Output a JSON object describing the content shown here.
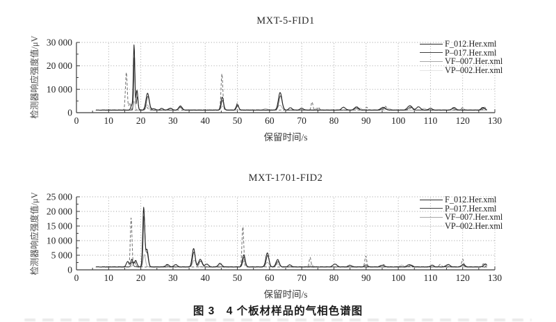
{
  "figure": {
    "caption": "图 3　4 个板材样品的气相色谱图"
  },
  "legend": {
    "items": [
      {
        "label": "F_012.Her.xml",
        "swatch_color": "#2b2b2b"
      },
      {
        "label": "P–017.Her.xml",
        "swatch_color": "#3f3f3f"
      },
      {
        "label": "VF–007.Her.xml",
        "swatch_color": "#a6a6a6"
      },
      {
        "label": "VP–002.Her.xml",
        "swatch_color": "#e4e4e4"
      }
    ],
    "position": "top-right-inside"
  },
  "chart_data": [
    {
      "type": "line",
      "title": "MXT-5-FID1",
      "xlabel": "保留时间/s",
      "ylabel": "检测器响应强度值/μV",
      "xlim": [
        0,
        130
      ],
      "ylim": [
        0,
        30000
      ],
      "x_major_ticks": [
        0,
        10,
        20,
        30,
        40,
        50,
        60,
        70,
        80,
        90,
        100,
        110,
        120,
        130
      ],
      "x_tick_labels": [
        "0",
        "10",
        "20",
        "30",
        "40",
        "50",
        "60",
        "70",
        "80",
        "90",
        "100",
        "110",
        "120",
        "130"
      ],
      "x_minor_step": 5,
      "y_major_ticks": [
        0,
        10000,
        20000,
        30000
      ],
      "y_tick_labels": [
        "0",
        "10 000",
        "20 000",
        "30 000"
      ],
      "y_minor_step": 5000,
      "grid": "dotted",
      "baseline": 1100,
      "x_end": 127.6,
      "series": [
        {
          "name": "F_012.Her.xml",
          "color": "#262626",
          "dash": null,
          "width": 1.1,
          "x_start": 6.0,
          "peaks": [
            [
              17.2,
              2200,
              0.3
            ],
            [
              17.9,
              27700,
              0.22
            ],
            [
              18.8,
              8600,
              0.28
            ],
            [
              22.1,
              7200,
              0.5
            ],
            [
              24,
              600,
              0.5
            ],
            [
              26.5,
              700,
              0.5
            ],
            [
              29.2,
              800,
              0.5
            ],
            [
              32.3,
              1800,
              0.5
            ],
            [
              45.3,
              5600,
              0.4
            ],
            [
              50.0,
              2300,
              0.4
            ],
            [
              63.3,
              7500,
              0.55
            ],
            [
              66.5,
              1000,
              0.5
            ],
            [
              70,
              800,
              0.5
            ],
            [
              83,
              1200,
              0.6
            ],
            [
              87,
              1400,
              0.6
            ],
            [
              95.3,
              1200,
              0.7
            ],
            [
              103.6,
              1900,
              0.7
            ],
            [
              106.3,
              1400,
              0.6
            ],
            [
              110,
              800,
              0.5
            ],
            [
              117.3,
              1100,
              0.6
            ],
            [
              126.3,
              1200,
              0.5
            ]
          ]
        },
        {
          "name": "P–017.Her.xml",
          "color": "#474747",
          "dash": null,
          "width": 1.0,
          "x_start": 7.5,
          "peaks": [
            [
              18.0,
              23400,
              0.2
            ],
            [
              18.9,
              5600,
              0.25
            ],
            [
              22.2,
              5900,
              0.45
            ],
            [
              32.2,
              1300,
              0.5
            ],
            [
              45.4,
              4200,
              0.38
            ],
            [
              50.1,
              1800,
              0.38
            ],
            [
              63.4,
              6100,
              0.5
            ],
            [
              87,
              900,
              0.6
            ],
            [
              95.5,
              800,
              0.6
            ],
            [
              103.8,
              1300,
              0.6
            ],
            [
              117,
              700,
              0.5
            ],
            [
              126.5,
              800,
              0.5
            ]
          ]
        },
        {
          "name": "VF–007.Her.xml",
          "color": "#a8a8a8",
          "dash": null,
          "width": 0.9,
          "x_start": 9.0,
          "peaks": [
            [
              17.9,
              3800,
              0.3
            ],
            [
              22.0,
              2200,
              0.5
            ],
            [
              29,
              800,
              0.6
            ],
            [
              32.4,
              1000,
              0.5
            ],
            [
              45.5,
              1700,
              0.5
            ],
            [
              58.8,
              600,
              0.6
            ],
            [
              63.2,
              2100,
              0.6
            ],
            [
              74.8,
              900,
              0.5
            ],
            [
              88,
              800,
              0.6
            ],
            [
              97,
              700,
              0.6
            ],
            [
              108,
              700,
              0.6
            ],
            [
              120,
              600,
              0.5
            ]
          ]
        },
        {
          "name": "VP–002.Her.xml",
          "color": "#6f6f6f",
          "dash": "4 2.5",
          "width": 1.0,
          "x_start": 10.0,
          "peaks": [
            [
              15.5,
              16100,
              0.28
            ],
            [
              16.6,
              3200,
              0.28
            ],
            [
              21.8,
              1300,
              0.35
            ],
            [
              45.2,
              15600,
              0.28
            ],
            [
              50.0,
              3100,
              0.32
            ],
            [
              73.2,
              3500,
              0.28
            ],
            [
              75.2,
              1100,
              0.3
            ],
            [
              90.2,
              1200,
              0.4
            ],
            [
              96,
              1600,
              0.4
            ],
            [
              104,
              1000,
              0.4
            ],
            [
              120,
              1100,
              0.35
            ],
            [
              126.8,
              1300,
              0.3
            ]
          ]
        }
      ]
    },
    {
      "type": "line",
      "title": "MXT-1701-FID2",
      "xlabel": "保留时间/s",
      "ylabel": "检测器响应强度值/μV",
      "xlim": [
        0,
        130
      ],
      "ylim": [
        0,
        25000
      ],
      "x_major_ticks": [
        0,
        10,
        20,
        30,
        40,
        50,
        60,
        70,
        80,
        90,
        100,
        110,
        120,
        130
      ],
      "x_tick_labels": [
        "0",
        "10",
        "20",
        "30",
        "40",
        "50",
        "60",
        "70",
        "80",
        "90",
        "100",
        "110",
        "120",
        "130"
      ],
      "x_minor_step": 5,
      "y_major_ticks": [
        0,
        5000,
        10000,
        15000,
        20000,
        25000
      ],
      "y_tick_labels": [
        "0",
        "5 000",
        "10 000",
        "15 000",
        "20 000",
        "25 000"
      ],
      "y_minor_step": 2500,
      "grid": "dotted",
      "baseline": 1000,
      "x_end": 127.6,
      "series": [
        {
          "name": "F_012.Her.xml",
          "color": "#262626",
          "dash": null,
          "width": 1.1,
          "x_start": 6.0,
          "peaks": [
            [
              15.9,
              1900,
              0.4
            ],
            [
              17.2,
              2600,
              0.33
            ],
            [
              18.4,
              2200,
              0.4
            ],
            [
              20.9,
              20200,
              0.3
            ],
            [
              21.9,
              6000,
              0.4
            ],
            [
              28.3,
              800,
              0.5
            ],
            [
              30.8,
              800,
              0.5
            ],
            [
              36.4,
              6300,
              0.45
            ],
            [
              38.5,
              2600,
              0.55
            ],
            [
              40.5,
              1000,
              0.5
            ],
            [
              44.6,
              1200,
              0.55
            ],
            [
              52.0,
              4200,
              0.42
            ],
            [
              59.3,
              4800,
              0.48
            ],
            [
              62.5,
              2500,
              0.5
            ],
            [
              66.3,
              700,
              0.5
            ],
            [
              80.3,
              1000,
              0.6
            ],
            [
              85,
              600,
              0.5
            ],
            [
              95,
              600,
              0.6
            ],
            [
              103.4,
              800,
              0.6
            ],
            [
              110.5,
              600,
              0.5
            ],
            [
              115.5,
              800,
              0.6
            ],
            [
              120.2,
              900,
              0.5
            ],
            [
              127,
              1000,
              0.5
            ]
          ]
        },
        {
          "name": "P–017.Her.xml",
          "color": "#474747",
          "dash": null,
          "width": 1.0,
          "x_start": 7.5,
          "peaks": [
            [
              17.3,
              1700,
              0.33
            ],
            [
              21.0,
              17400,
              0.28
            ],
            [
              21.9,
              4900,
              0.4
            ],
            [
              36.5,
              5100,
              0.42
            ],
            [
              38.6,
              2000,
              0.5
            ],
            [
              52.1,
              3400,
              0.4
            ],
            [
              59.4,
              3900,
              0.45
            ],
            [
              62.6,
              1800,
              0.5
            ],
            [
              90,
              600,
              0.5
            ],
            [
              104,
              600,
              0.5
            ],
            [
              120,
              600,
              0.5
            ]
          ]
        },
        {
          "name": "VF–007.Her.xml",
          "color": "#a8a8a8",
          "dash": null,
          "width": 0.9,
          "x_start": 9.0,
          "peaks": [
            [
              18,
              1500,
              0.4
            ],
            [
              21.1,
              4300,
              0.35
            ],
            [
              36.6,
              2300,
              0.5
            ],
            [
              44.7,
              800,
              0.5
            ],
            [
              52.0,
              1900,
              0.45
            ],
            [
              59.3,
              1600,
              0.5
            ],
            [
              62.5,
              1100,
              0.5
            ],
            [
              73,
              700,
              0.5
            ],
            [
              90,
              800,
              0.5
            ],
            [
              101,
              600,
              0.6
            ],
            [
              115,
              600,
              0.5
            ],
            [
              127,
              800,
              0.5
            ]
          ]
        },
        {
          "name": "VP–002.Her.xml",
          "color": "#6f6f6f",
          "dash": "4 2.5",
          "width": 1.0,
          "x_start": 10.0,
          "peaks": [
            [
              17.0,
              16900,
              0.26
            ],
            [
              18.1,
              2100,
              0.3
            ],
            [
              27.9,
              800,
              0.4
            ],
            [
              51.7,
              14000,
              0.27
            ],
            [
              72.6,
              3300,
              0.28
            ],
            [
              89.9,
              3700,
              0.3
            ],
            [
              95.5,
              800,
              0.4
            ],
            [
              113,
              800,
              0.4
            ],
            [
              120,
              2700,
              0.3
            ],
            [
              126.5,
              1100,
              0.35
            ]
          ]
        }
      ]
    }
  ]
}
